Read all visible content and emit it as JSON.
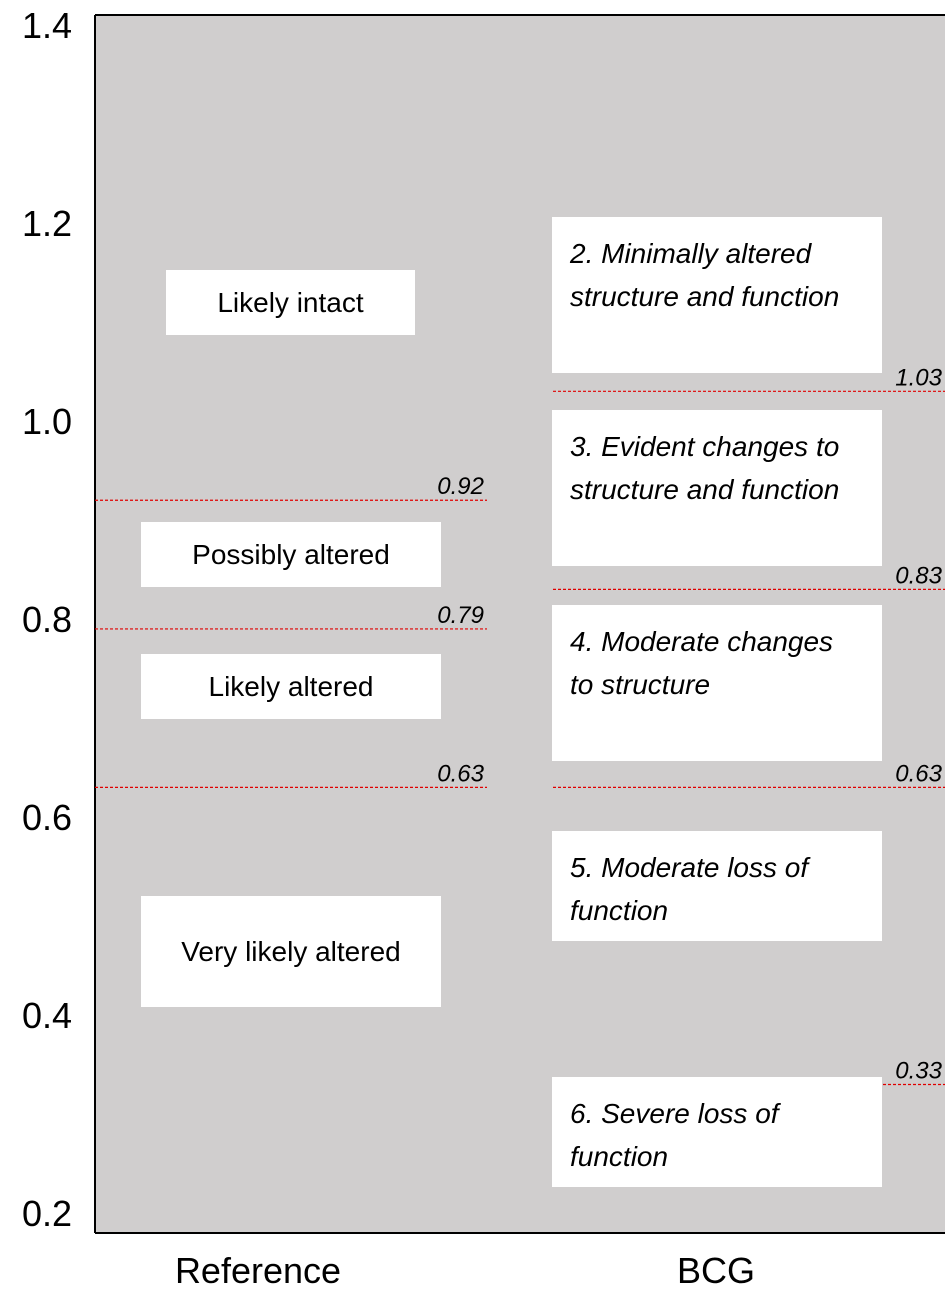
{
  "chart_data": {
    "type": "threshold",
    "categories": [
      "Reference",
      "BCG"
    ],
    "ylim": [
      0.18,
      1.41
    ],
    "yticks": [
      0.2,
      0.4,
      0.6,
      0.8,
      {
        "value": 1.0,
        "label": "1.0"
      },
      1.2,
      1.4
    ],
    "line_color": "#e00000",
    "columns": [
      {
        "thresholds": [
          0.92,
          0.79,
          0.63
        ],
        "classes": [
          "Likely intact",
          "Possibly altered",
          "Likely altered",
          "Very likely altered"
        ]
      },
      {
        "thresholds": [
          1.03,
          0.83,
          0.63,
          0.33
        ],
        "classes": [
          "2. Minimally altered structure and function",
          "3. Evident changes to structure and function",
          "4. Moderate changes to structure",
          "5. Moderate loss of function",
          "6. Severe loss of function"
        ]
      }
    ]
  }
}
